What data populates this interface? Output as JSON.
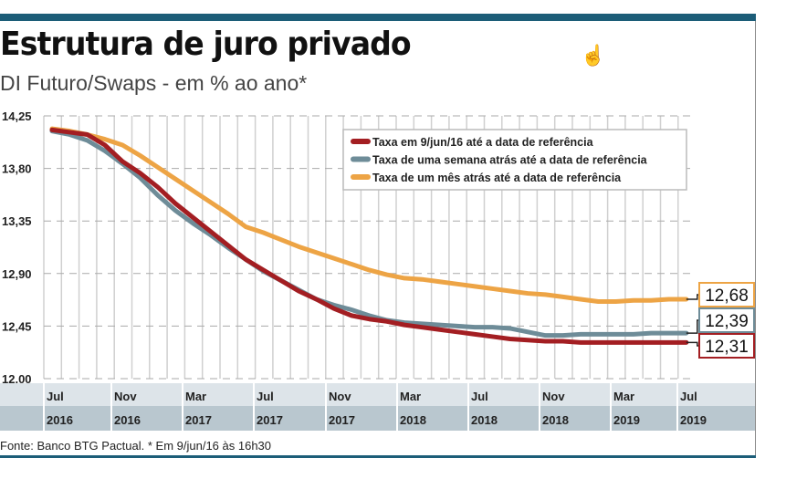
{
  "header": {
    "title": "Estrutura de juro privado",
    "subtitle": "DI Futuro/Swaps - em % ao ano*"
  },
  "footer": "Fonte: Banco BTG Pactual. * Em 9/jun/16 às 16h30",
  "chart_data": {
    "type": "line",
    "title": "Estrutura de juro privado",
    "subtitle": "DI Futuro/Swaps - em % ao ano*",
    "ylim": [
      12.0,
      14.25
    ],
    "yticks": [
      "14,25",
      "13,80",
      "13,35",
      "12,90",
      "12,45",
      "12,00"
    ],
    "ytick_values": [
      14.25,
      13.8,
      13.35,
      12.9,
      12.45,
      12.0
    ],
    "xlim": [
      "Jul 2016",
      "Jul 2019"
    ],
    "xticks": [
      {
        "month": "Jul",
        "year": "2016"
      },
      {
        "month": "Nov",
        "year": "2016"
      },
      {
        "month": "Mar",
        "year": "2017"
      },
      {
        "month": "Jul",
        "year": "2017"
      },
      {
        "month": "Nov",
        "year": "2017"
      },
      {
        "month": "Mar",
        "year": "2018"
      },
      {
        "month": "Jul",
        "year": "2018"
      },
      {
        "month": "Nov",
        "year": "2018"
      },
      {
        "month": "Mar",
        "year": "2019"
      },
      {
        "month": "Jul",
        "year": "2019"
      }
    ],
    "grid": "monthly vertical lines, dashed horizontal lines",
    "legend_position": "top-right",
    "x": [
      "Jul/16",
      "Ago/16",
      "Set/16",
      "Out/16",
      "Nov/16",
      "Dez/16",
      "Jan/17",
      "Fev/17",
      "Mar/17",
      "Abr/17",
      "Mai/17",
      "Jun/17",
      "Jul/17",
      "Ago/17",
      "Set/17",
      "Out/17",
      "Nov/17",
      "Dez/17",
      "Jan/18",
      "Fev/18",
      "Mar/18",
      "Abr/18",
      "Mai/18",
      "Jun/18",
      "Jul/18",
      "Ago/18",
      "Set/18",
      "Out/18",
      "Nov/18",
      "Dez/18",
      "Jan/19",
      "Fev/19",
      "Mar/19",
      "Abr/19",
      "Mai/19",
      "Jun/19",
      "Jul/19"
    ],
    "series": [
      {
        "name": "Taxa em 9/jun/16 até a data de referência",
        "color": "#a31e22",
        "end_label": "12,31",
        "values": [
          14.13,
          14.11,
          14.09,
          14.0,
          13.86,
          13.76,
          13.64,
          13.5,
          13.38,
          13.26,
          13.14,
          13.02,
          12.93,
          12.84,
          12.75,
          12.68,
          12.6,
          12.54,
          12.51,
          12.49,
          12.46,
          12.44,
          12.42,
          12.4,
          12.38,
          12.36,
          12.34,
          12.33,
          12.32,
          12.32,
          12.31,
          12.31,
          12.31,
          12.31,
          12.31,
          12.31,
          12.31
        ]
      },
      {
        "name": "Taxa de uma semana atrás até a data de referência",
        "color": "#6e8c98",
        "end_label": "12,39",
        "values": [
          14.12,
          14.09,
          14.04,
          13.95,
          13.84,
          13.72,
          13.57,
          13.44,
          13.33,
          13.23,
          13.12,
          13.02,
          12.92,
          12.84,
          12.76,
          12.68,
          12.63,
          12.59,
          12.54,
          12.5,
          12.48,
          12.47,
          12.46,
          12.45,
          12.44,
          12.44,
          12.43,
          12.4,
          12.37,
          12.37,
          12.38,
          12.38,
          12.38,
          12.38,
          12.39,
          12.39,
          12.39
        ]
      },
      {
        "name": "Taxa de um mês atrás até a data de referência",
        "color": "#eda445",
        "end_label": "12,68",
        "values": [
          14.14,
          14.12,
          14.09,
          14.05,
          14.0,
          13.91,
          13.81,
          13.71,
          13.61,
          13.51,
          13.41,
          13.3,
          13.25,
          13.19,
          13.13,
          13.08,
          13.03,
          12.98,
          12.93,
          12.89,
          12.86,
          12.85,
          12.83,
          12.81,
          12.79,
          12.77,
          12.75,
          12.73,
          12.72,
          12.7,
          12.68,
          12.66,
          12.66,
          12.67,
          12.67,
          12.68,
          12.68
        ]
      }
    ]
  }
}
